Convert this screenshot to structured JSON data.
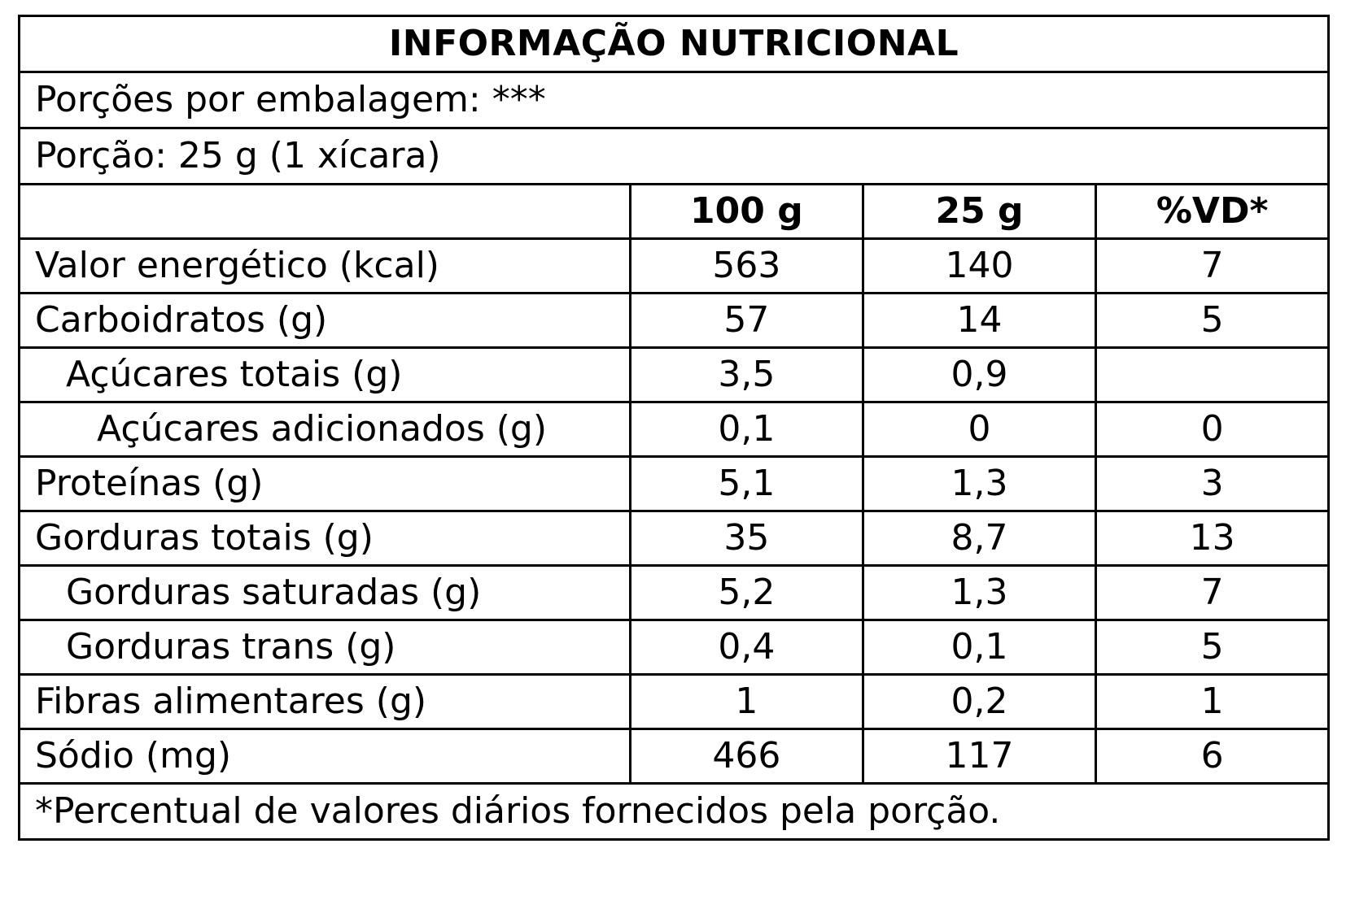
{
  "label": {
    "title": "INFORMAÇÃO NUTRICIONAL",
    "servings_per_package": "Porções por embalagem: ***",
    "serving_size": "Porção: 25 g (1 xícara)",
    "columns": [
      "",
      "100 g",
      "25 g",
      "%VD*"
    ],
    "rows": [
      {
        "name": "Valor energético (kcal)",
        "per100": "563",
        "perServing": "140",
        "dv": "7"
      },
      {
        "name": "Carboidratos (g)",
        "per100": "57",
        "perServing": "14",
        "dv": "5"
      },
      {
        "name": "Açúcares totais (g)",
        "per100": "3,5",
        "perServing": "0,9",
        "dv": ""
      },
      {
        "name": "Açúcares adicionados (g)",
        "per100": "0,1",
        "perServing": "0",
        "dv": "0"
      },
      {
        "name": "Proteínas (g)",
        "per100": "5,1",
        "perServing": "1,3",
        "dv": "3"
      },
      {
        "name": "Gorduras totais (g)",
        "per100": "35",
        "perServing": "8,7",
        "dv": "13"
      },
      {
        "name": "Gorduras saturadas (g)",
        "per100": "5,2",
        "perServing": "1,3",
        "dv": "7"
      },
      {
        "name": "Gorduras trans (g)",
        "per100": "0,4",
        "perServing": "0,1",
        "dv": "5"
      },
      {
        "name": "Fibras alimentares (g)",
        "per100": "1",
        "perServing": "0,2",
        "dv": "1"
      },
      {
        "name": "Sódio (mg)",
        "per100": "466",
        "perServing": "117",
        "dv": "6"
      }
    ],
    "footnote": "*Percentual de valores diários fornecidos pela porção."
  }
}
